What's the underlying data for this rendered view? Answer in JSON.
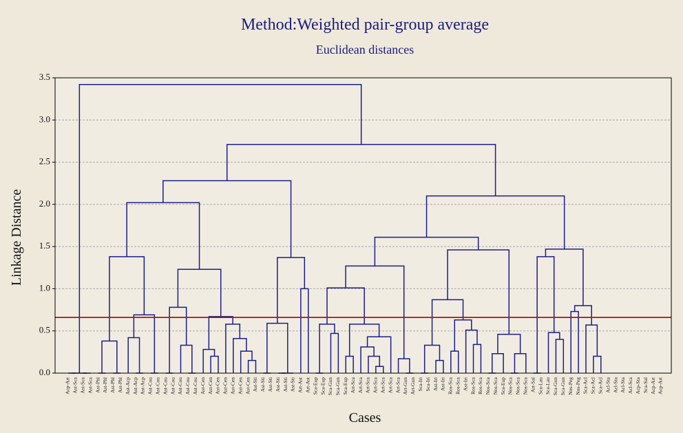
{
  "chart_data": {
    "type": "dendrogram",
    "title": "Method:Weighted pair-group average",
    "subtitle": "Euclidean distances",
    "x_label": "Cases",
    "y_label": "Linkage Distance",
    "color": "#1c1c8a",
    "grid": true,
    "cutoff": 0.66,
    "cutoff_color": "#a01818",
    "ylim": [
      0,
      3.5
    ],
    "yticks": [
      {
        "value": 0,
        "label": "0.0"
      },
      0.5,
      {
        "value": 1,
        "label": "1.0"
      },
      1.5,
      {
        "value": 2,
        "label": "2.0"
      },
      2.5,
      {
        "value": 3,
        "label": "3.0"
      },
      3.5
    ],
    "categories": [
      "Acp-Art",
      "Ast-Sca",
      "Ast-Sca",
      "Ast-Sca",
      "Ast-Phl",
      "Ast-Phl",
      "Ast-Phl",
      "Ast-Phl",
      "Ast-Acp",
      "Ast-Acp",
      "Ast-Acp",
      "Ast-Cou",
      "Ast-Cou",
      "Ast-Cou",
      "Ast-Cou",
      "Ast-Cou",
      "Ast-Cou",
      "Ast-Cou",
      "Ast-Cen",
      "Ast-Cen",
      "Ast-Cen",
      "Ast-Cen",
      "Ast-Cen",
      "Ast-Cen",
      "Ast-Cen",
      "Ast-Sti",
      "Ast-Sti",
      "Ast-Sti",
      "Ast-Sti",
      "Ast-Sti",
      "Ast-Sti",
      "Art-Ast",
      "Art-Ast",
      "Sca-Eup",
      "Sca-Eup",
      "Sca-Gun",
      "Sca-Gun",
      "Sca-Eup",
      "Art-Sca",
      "Art-Sca",
      "Art-Sca",
      "Art-Sca",
      "Art-Sca",
      "Art-Sca",
      "Art-Sca",
      "Art-Gun",
      "Art-Gun",
      "Sca-Iri",
      "Sca-Iri",
      "Ast-Iri",
      "Ast-Iri",
      "Ros-Sca",
      "Ros-Sca",
      "Ast-Iri",
      "Ros-Sca",
      "Ros-Sca",
      "Nos-Sca",
      "Nos-Sca",
      "Sca-Eup",
      "Nos-Sca",
      "Nos-Sca",
      "Nos-Sca",
      "Art-Sal",
      "Sca-Lau",
      "Sca-Lau",
      "Sca-Gun",
      "Sca-Gun",
      "Nos-Peg",
      "Nos-Peg",
      "Sca-Acl",
      "Sca-Acl",
      "Sca-Acl",
      "Acl-Sta",
      "Acl-Sta",
      "Acl-Sta",
      "Acl-Sca",
      "Acp-Sta",
      "Sca-Sal",
      "Acp-Art",
      "Acp-Art"
    ],
    "tree": {
      "h": 3.42,
      "c": [
        {
          "h": 0,
          "c": [
            {
              "h": 0,
              "c": [
                0,
                1
              ]
            },
            {
              "h": 0,
              "c": [
                2,
                3
              ]
            }
          ]
        },
        {
          "h": 2.71,
          "c": [
            {
              "h": 2.28,
              "c": [
                {
                  "h": 2.02,
                  "c": [
                    {
                      "h": 1.38,
                      "c": [
                        {
                          "h": 0.38,
                          "c": [
                            {
                              "h": 0,
                              "c": [
                                4,
                                5
                              ]
                            },
                            {
                              "h": 0,
                              "c": [
                                6,
                                7
                              ]
                            }
                          ]
                        },
                        {
                          "h": 0.69,
                          "c": [
                            {
                              "h": 0.42,
                              "c": [
                                8,
                                {
                                  "h": 0,
                                  "c": [
                                    9,
                                    10
                                  ]
                                }
                              ]
                            },
                            {
                              "h": 0,
                              "c": [
                                11,
                                12
                              ]
                            }
                          ]
                        }
                      ]
                    },
                    {
                      "h": 1.23,
                      "c": [
                        {
                          "h": 0.78,
                          "c": [
                            {
                              "h": 0,
                              "c": [
                                13,
                                14
                              ]
                            },
                            {
                              "h": 0.33,
                              "c": [
                                15,
                                {
                                  "h": 0,
                                  "c": [
                                    16,
                                    17
                                  ]
                                }
                              ]
                            }
                          ]
                        },
                        {
                          "h": 0.67,
                          "c": [
                            {
                              "h": 0.28,
                              "c": [
                                18,
                                {
                                  "h": 0.2,
                                  "c": [
                                    19,
                                    20
                                  ]
                                }
                              ]
                            },
                            {
                              "h": 0.58,
                              "c": [
                                21,
                                {
                                  "h": 0.41,
                                  "c": [
                                    22,
                                    {
                                      "h": 0.26,
                                      "c": [
                                        23,
                                        {
                                          "h": 0.15,
                                          "c": [
                                            24,
                                            25
                                          ]
                                        }
                                      ]
                                    }
                                  ]
                                }
                              ]
                            }
                          ]
                        }
                      ]
                    }
                  ]
                },
                {
                  "h": 1.37,
                  "c": [
                    {
                      "h": 0.59,
                      "c": [
                        {
                          "h": 0,
                          "c": [
                            26,
                            27
                          ]
                        },
                        {
                          "h": 0,
                          "c": [
                            {
                              "h": 0,
                              "c": [
                                28,
                                29
                              ]
                            },
                            30
                          ]
                        }
                      ]
                    },
                    {
                      "h": 1.0,
                      "c": [
                        31,
                        32
                      ]
                    }
                  ]
                }
              ]
            },
            {
              "h": 2.1,
              "c": [
                {
                  "h": 1.61,
                  "c": [
                    {
                      "h": 1.27,
                      "c": [
                        {
                          "h": 1.01,
                          "c": [
                            {
                              "h": 0.58,
                              "c": [
                                {
                                  "h": 0,
                                  "c": [
                                    33,
                                    34
                                  ]
                                },
                                {
                                  "h": 0.47,
                                  "c": [
                                    35,
                                    36
                                  ]
                                }
                              ]
                            },
                            {
                              "h": 0.58,
                              "c": [
                                {
                                  "h": 0.2,
                                  "c": [
                                    37,
                                    38
                                  ]
                                },
                                {
                                  "h": 0.43,
                                  "c": [
                                    {
                                      "h": 0.31,
                                      "c": [
                                        39,
                                        {
                                          "h": 0.2,
                                          "c": [
                                            40,
                                            {
                                              "h": 0.08,
                                              "c": [
                                                41,
                                                42
                                              ]
                                            }
                                          ]
                                        }
                                      ]
                                    },
                                    43
                                  ]
                                }
                              ]
                            }
                          ]
                        },
                        {
                          "h": 0.17,
                          "c": [
                            44,
                            {
                              "h": 0,
                              "c": [
                                45,
                                46
                              ]
                            }
                          ]
                        }
                      ]
                    },
                    {
                      "h": 1.46,
                      "c": [
                        {
                          "h": 0.87,
                          "c": [
                            {
                              "h": 0.33,
                              "c": [
                                {
                                  "h": 0,
                                  "c": [
                                    47,
                                    48
                                  ]
                                },
                                {
                                  "h": 0.15,
                                  "c": [
                                    49,
                                    50
                                  ]
                                }
                              ]
                            },
                            {
                              "h": 0.63,
                              "c": [
                                {
                                  "h": 0.26,
                                  "c": [
                                    51,
                                    52
                                  ]
                                },
                                {
                                  "h": 0.51,
                                  "c": [
                                    53,
                                    {
                                      "h": 0.34,
                                      "c": [
                                        54,
                                        55
                                      ]
                                    }
                                  ]
                                }
                              ]
                            }
                          ]
                        },
                        {
                          "h": 0.46,
                          "c": [
                            {
                              "h": 0.23,
                              "c": [
                                {
                                  "h": 0,
                                  "c": [
                                    56,
                                    57
                                  ]
                                },
                                58
                              ]
                            },
                            {
                              "h": 0.23,
                              "c": [
                                {
                                  "h": 0,
                                  "c": [
                                    59,
                                    60
                                  ]
                                },
                                61
                              ]
                            }
                          ]
                        }
                      ]
                    }
                  ]
                },
                {
                  "h": 1.47,
                  "c": [
                    {
                      "h": 1.38,
                      "c": [
                        {
                          "h": 0,
                          "c": [
                            62,
                            63
                          ]
                        },
                        {
                          "h": 0.48,
                          "c": [
                            64,
                            {
                              "h": 0.4,
                              "c": [
                                65,
                                66
                              ]
                            }
                          ]
                        }
                      ]
                    },
                    {
                      "h": 0.8,
                      "c": [
                        {
                          "h": 0.73,
                          "c": [
                            67,
                            68
                          ]
                        },
                        {
                          "h": 0.57,
                          "c": [
                            69,
                            {
                              "h": 0.2,
                              "c": [
                                70,
                                71
                              ]
                            }
                          ]
                        }
                      ]
                    }
                  ]
                }
              ]
            }
          ]
        }
      ]
    }
  }
}
